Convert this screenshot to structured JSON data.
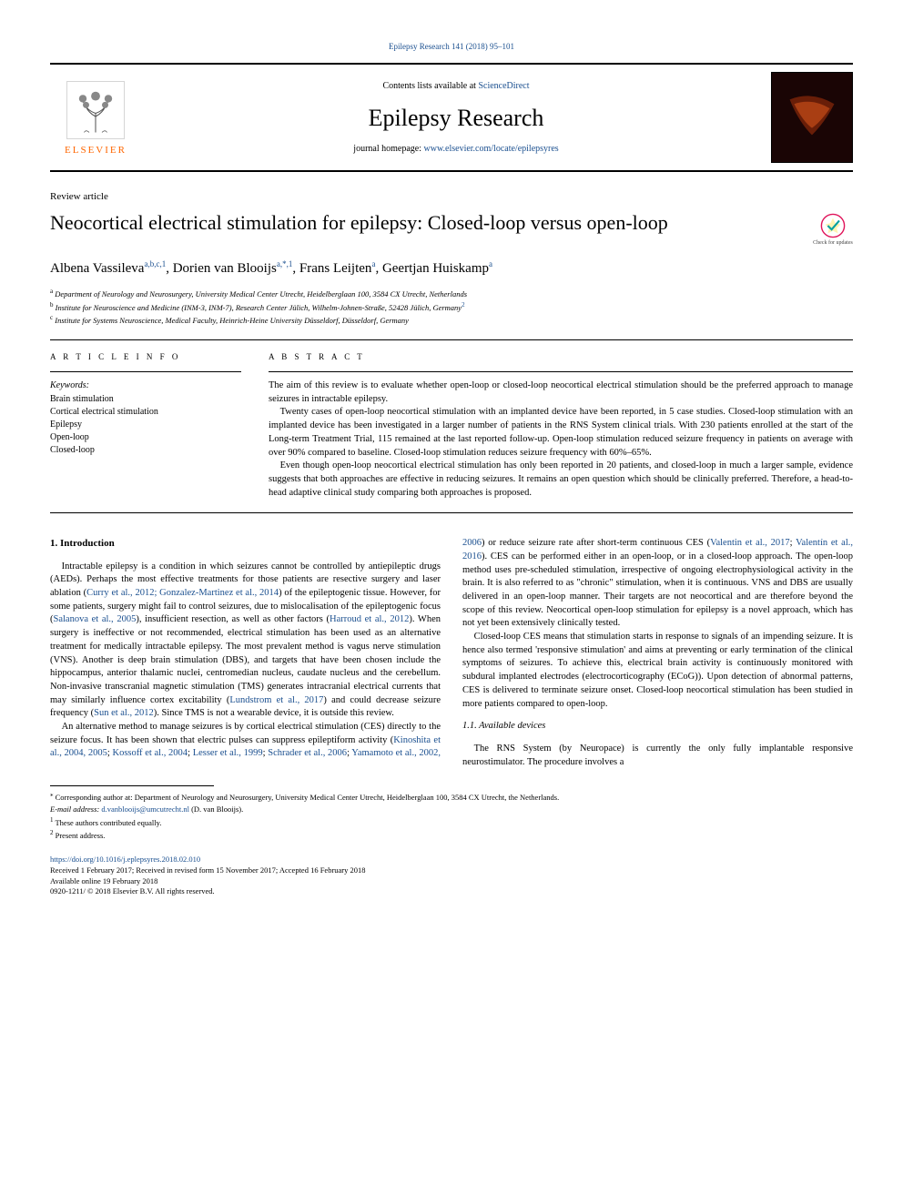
{
  "journal_ref": "Epilepsy Research 141 (2018) 95–101",
  "header": {
    "contents_prefix": "Contents lists available at ",
    "contents_link": "ScienceDirect",
    "journal_name": "Epilepsy Research",
    "homepage_prefix": "journal homepage: ",
    "homepage_link": "www.elsevier.com/locate/epilepsyres",
    "publisher_name": "ELSEVIER"
  },
  "article_type": "Review article",
  "title": "Neocortical electrical stimulation for epilepsy: Closed-loop versus open-loop",
  "check_updates": "Check for updates",
  "authors_html": "Albena Vassileva<sup>a,b,c,1</sup>, Dorien van Blooijs<sup>a,*,1</sup>, Frans Leijten<sup>a</sup>, Geertjan Huiskamp<sup>a</sup>",
  "affiliations": {
    "a": "Department of Neurology and Neurosurgery, University Medical Center Utrecht, Heidelberglaan 100, 3584 CX Utrecht, Netherlands",
    "b": "Institute for Neuroscience and Medicine (INM-3, INM-7), Research Center Jülich, Wilhelm-Johnen-Straße, 52428 Jülich, Germany",
    "b_fn": "2",
    "c": "Institute for Systems Neuroscience, Medical Faculty, Heinrich-Heine University Düsseldorf, Düsseldorf, Germany"
  },
  "info": {
    "label": "A R T I C L E  I N F O",
    "keywords_label": "Keywords:",
    "keywords": [
      "Brain stimulation",
      "Cortical electrical stimulation",
      "Epilepsy",
      "Open-loop",
      "Closed-loop"
    ]
  },
  "abstract": {
    "label": "A B S T R A C T",
    "p1": "The aim of this review is to evaluate whether open-loop or closed-loop neocortical electrical stimulation should be the preferred approach to manage seizures in intractable epilepsy.",
    "p2": "Twenty cases of open-loop neocortical stimulation with an implanted device have been reported, in 5 case studies. Closed-loop stimulation with an implanted device has been investigated in a larger number of patients in the RNS System clinical trials. With 230 patients enrolled at the start of the Long-term Treatment Trial, 115 remained at the last reported follow-up. Open-loop stimulation reduced seizure frequency in patients on average with over 90% compared to baseline. Closed-loop stimulation reduces seizure frequency with 60%–65%.",
    "p3": "Even though open-loop neocortical electrical stimulation has only been reported in 20 patients, and closed-loop in much a larger sample, evidence suggests that both approaches are effective in reducing seizures. It remains an open question which should be clinically preferred. Therefore, a head-to-head adaptive clinical study comparing both approaches is proposed."
  },
  "body": {
    "h_intro": "1. Introduction",
    "intro_p1a": "Intractable epilepsy is a condition in which seizures cannot be controlled by antiepileptic drugs (AEDs). Perhaps the most effective treatments for those patients are resective surgery and laser ablation (",
    "intro_c1": "Curry et al., 2012; Gonzalez-Martinez et al., 2014",
    "intro_p1b": ") of the epileptogenic tissue. However, for some patients, surgery might fail to control seizures, due to mislocalisation of the epileptogenic focus (",
    "intro_c2": "Salanova et al., 2005",
    "intro_p1c": "), insufficient resection, as well as other factors (",
    "intro_c3": "Harroud et al., 2012",
    "intro_p1d": "). When surgery is ineffective or not recommended, electrical stimulation has been used as an alternative treatment for medically intractable epilepsy. The most prevalent method is vagus nerve stimulation (VNS). Another is deep brain stimulation (DBS), and targets that have been chosen include the hippocampus, anterior thalamic nuclei, centromedian nucleus, caudate nucleus and the cerebellum. Non-invasive transcranial magnetic stimulation (TMS) generates intracranial electrical currents that may similarly influence cortex excitability (",
    "intro_c4": "Lundstrom et al., 2017",
    "intro_p1e": ") and could decrease seizure frequency (",
    "intro_c5": "Sun et al., 2012",
    "intro_p1f": "). Since TMS is not a wearable device, it is outside this review.",
    "intro_p2a": "An alternative method to manage seizures is by cortical electrical stimulation (CES) directly to the seizure focus. It has been shown that electric pulses can suppress epileptiform activity (",
    "intro_c6": "Kinoshita et al., 2004, 2005",
    "intro_p2b": "; ",
    "intro_c7": "Kossoff et al., 2004",
    "intro_p2c": "; ",
    "intro_c8": "Lesser et al., 1999",
    "intro_p2d": "; ",
    "intro_c9": "Schrader et al., 2006",
    "intro_p2e": "; ",
    "intro_c10": "Yamamoto et al., 2002, 2006",
    "intro_p2f": ") or reduce seizure rate after short-term continuous CES (",
    "intro_c11": "Valentin et al., 2017",
    "intro_p2g": "; ",
    "intro_c12": "Valentín et al., 2016",
    "intro_p2h": "). CES can be performed either in an open-loop, or in a closed-loop approach. The open-loop method uses pre-scheduled stimulation, irrespective of ongoing electrophysiological activity in the brain. It is also referred to as \"chronic\" stimulation, when it is continuous. VNS and DBS are usually delivered in an open-loop manner. Their targets are not neocortical and are therefore beyond the scope of this review. Neocortical open-loop stimulation for epilepsy is a novel approach, which has not yet been extensively clinically tested.",
    "intro_p3": "Closed-loop CES means that stimulation starts in response to signals of an impending seizure. It is hence also termed 'responsive stimulation' and aims at preventing or early termination of the clinical symptoms of seizures. To achieve this, electrical brain activity is continuously monitored with subdural implanted electrodes (electrocorticography (ECoG)). Upon detection of abnormal patterns, CES is delivered to terminate seizure onset. Closed-loop neocortical stimulation has been studied in more patients compared to open-loop.",
    "h_devices": "1.1. Available devices",
    "dev_p1": "The RNS System (by Neuropace) is currently the only fully implantable responsive neurostimulator. The procedure involves a"
  },
  "footnotes": {
    "corr": "Corresponding author at: Department of Neurology and Neurosurgery, University Medical Center Utrecht, Heidelberglaan 100, 3584 CX Utrecht, the Netherlands.",
    "email_label": "E-mail address: ",
    "email": "d.vanblooijs@umcutrecht.nl",
    "email_author": " (D. van Blooijs).",
    "fn1": "These authors contributed equally.",
    "fn2": "Present address."
  },
  "doi": {
    "link": "https://doi.org/10.1016/j.eplepsyres.2018.02.010",
    "received": "Received 1 February 2017; Received in revised form 15 November 2017; Accepted 16 February 2018",
    "online": "Available online 19 February 2018",
    "copyright": "0920-1211/ © 2018 Elsevier B.V. All rights reserved."
  },
  "colors": {
    "link": "#1a4f8f",
    "elsevier_orange": "#ff6600",
    "text": "#000000",
    "bg": "#ffffff"
  }
}
